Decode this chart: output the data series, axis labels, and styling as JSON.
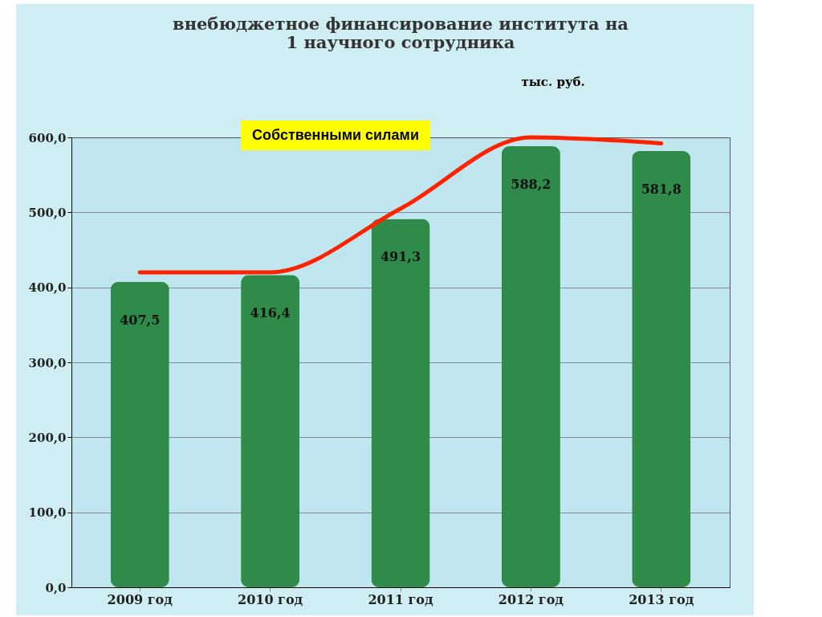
{
  "chart_data": {
    "type": "bar",
    "title": [
      "внебюджетное финансирование института на",
      "1 научного сотрудника"
    ],
    "ylabel": "тыс. руб.",
    "categories": [
      "2009 год",
      "2010 год",
      "2011 год",
      "2012 год",
      "2013 год"
    ],
    "series": [
      {
        "color": "#2e8b4a",
        "values": [
          407.5,
          416.4,
          491.3,
          588.2,
          581.8
        ],
        "value_labels": [
          "407,5",
          "416,4",
          "491,3",
          "588,2",
          "581,8"
        ]
      },
      {
        "type": "line",
        "color": "#ff2200",
        "values": [
          420,
          420,
          505,
          600,
          592
        ]
      }
    ],
    "ylim": [
      0,
      600
    ],
    "yticks": [
      {
        "value": 0,
        "label": "0,0"
      },
      {
        "value": 100,
        "label": "100,0"
      },
      {
        "value": 200,
        "label": "200,0"
      },
      {
        "value": 300,
        "label": "300,0"
      },
      {
        "value": 400,
        "label": "400,0"
      },
      {
        "value": 500,
        "label": "500,0"
      },
      {
        "value": 600,
        "label": "600,0"
      }
    ],
    "grid": "y",
    "line_style": "solid",
    "annotations": [
      "Собственными силами"
    ]
  }
}
